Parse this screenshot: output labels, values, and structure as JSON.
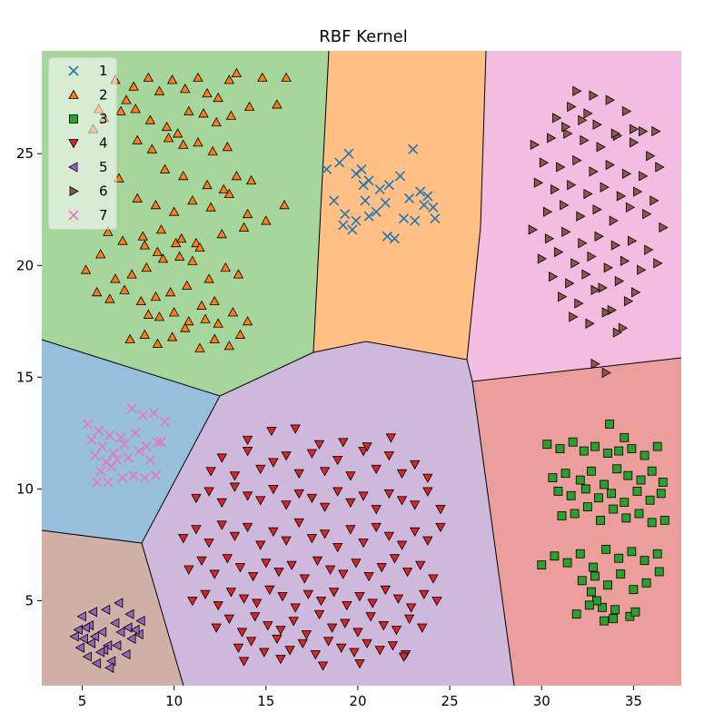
{
  "chart_data": {
    "type": "scatter",
    "title": "RBF Kernel",
    "xlabel": "",
    "ylabel": "",
    "xlim": [
      2.8,
      37.6
    ],
    "ylim": [
      1.2,
      29.6
    ],
    "xticks": [
      5,
      10,
      15,
      20,
      25,
      30,
      35
    ],
    "yticks": [
      5,
      10,
      15,
      20,
      25
    ],
    "grid": false,
    "legend_position": "top-left",
    "regions": [
      {
        "label": "1",
        "color": "#ffbf85"
      },
      {
        "label": "2",
        "color": "#a6d69b"
      },
      {
        "label": "3",
        "color": "#eb9e9b"
      },
      {
        "label": "4",
        "color": "#ceb8dc"
      },
      {
        "label": "5",
        "color": "#98c0dc"
      },
      {
        "label": "6",
        "color": "#d0b1a8"
      },
      {
        "label": "7",
        "color": "#f2bde0"
      }
    ],
    "series": [
      {
        "name": "1",
        "marker": "x",
        "color": "#1f77b4",
        "x": [
          18.3,
          19.0,
          19.5,
          19.9,
          20.3,
          20.6,
          21.2,
          21.7,
          22.3,
          23.0,
          23.8,
          24.1,
          18.7,
          19.3,
          19.9,
          20.6,
          21.0,
          21.6,
          22.0,
          22.5,
          23.1,
          23.6,
          24.2,
          19.2,
          19.7,
          20.4,
          21.5,
          22.8,
          23.4,
          20.2
        ],
        "y": [
          24.3,
          24.6,
          25.0,
          24.1,
          23.6,
          23.8,
          23.4,
          23.6,
          24.0,
          25.2,
          23.1,
          22.6,
          22.9,
          22.3,
          22.0,
          22.2,
          22.4,
          21.3,
          21.2,
          22.1,
          22.0,
          22.7,
          22.1,
          21.8,
          21.6,
          22.9,
          22.8,
          23.0,
          23.3,
          24.3
        ]
      },
      {
        "name": "2",
        "marker": "triangle-up",
        "color": "#ff7f0e",
        "x": [
          5.9,
          6.8,
          7.4,
          7.8,
          8.6,
          9.2,
          9.9,
          10.6,
          11.3,
          11.8,
          12.4,
          13.0,
          13.4,
          14.1,
          14.8,
          15.6,
          16.1,
          5.6,
          6.2,
          7.1,
          7.9,
          8.7,
          9.6,
          10.2,
          10.8,
          11.6,
          12.3,
          13.1,
          5.2,
          6.0,
          6.8,
          7.7,
          8.5,
          9.4,
          10.1,
          11.0,
          11.9,
          12.8,
          13.5,
          5.8,
          6.5,
          7.3,
          8.2,
          9.0,
          9.8,
          10.7,
          11.5,
          12.2,
          8.6,
          9.2,
          10.0,
          10.8,
          11.7,
          12.4,
          13.2,
          14.0,
          7.6,
          8.4,
          9.1,
          9.9,
          10.6,
          11.4,
          12.2,
          13.0,
          13.6,
          8.0,
          8.8,
          9.7,
          10.5,
          11.3,
          12.1,
          12.9,
          7.0,
          8.0,
          9.0,
          10.0,
          11.0,
          12.0,
          13.0,
          14.0,
          15.0,
          16.0,
          6.4,
          7.2,
          8.3,
          9.3,
          10.4,
          11.2,
          12.6,
          13.8,
          9.5,
          10.5,
          11.8,
          12.7,
          13.4,
          14.2,
          8.4,
          9.1,
          10.3,
          11.4
        ],
        "y": [
          27.0,
          28.3,
          27.4,
          28.0,
          28.4,
          27.8,
          28.3,
          27.9,
          28.4,
          27.7,
          27.5,
          28.3,
          28.6,
          27.1,
          28.4,
          27.2,
          28.4,
          26.1,
          26.6,
          26.9,
          27.0,
          26.5,
          26.2,
          25.9,
          26.9,
          26.8,
          26.4,
          26.7,
          19.8,
          20.5,
          19.4,
          19.6,
          19.9,
          20.3,
          21.0,
          20.2,
          19.4,
          19.9,
          19.6,
          18.8,
          18.5,
          18.9,
          18.4,
          18.6,
          18.8,
          19.1,
          18.2,
          18.4,
          17.8,
          17.7,
          17.9,
          17.5,
          17.6,
          17.4,
          17.9,
          17.5,
          16.7,
          16.9,
          16.5,
          16.8,
          17.2,
          16.3,
          16.7,
          16.4,
          16.9,
          25.6,
          25.2,
          25.7,
          25.4,
          25.5,
          25.1,
          25.3,
          23.9,
          23.0,
          22.7,
          22.4,
          22.9,
          22.6,
          23.2,
          22.3,
          22.0,
          22.7,
          21.5,
          21.1,
          21.3,
          21.6,
          21.2,
          21.0,
          21.4,
          21.7,
          24.3,
          24.0,
          23.6,
          23.4,
          24.0,
          23.8,
          20.9,
          20.6,
          20.4,
          20.8
        ]
      },
      {
        "name": "3",
        "marker": "square",
        "color": "#2ca02c",
        "x": [
          30.3,
          31.0,
          31.7,
          32.3,
          32.9,
          33.6,
          34.2,
          34.9,
          35.6,
          36.3,
          30.6,
          31.3,
          32.1,
          32.7,
          33.4,
          34.1,
          34.7,
          35.4,
          36.0,
          36.6,
          30.9,
          31.6,
          32.4,
          33.1,
          33.8,
          34.5,
          35.2,
          35.9,
          36.5,
          31.1,
          31.8,
          32.5,
          33.2,
          33.9,
          34.6,
          35.3,
          36.0,
          36.7,
          30.0,
          30.7,
          31.4,
          32.1,
          32.8,
          33.5,
          34.2,
          34.9,
          35.6,
          36.3,
          32.2,
          32.9,
          33.6,
          34.3,
          35.0,
          35.7,
          36.4,
          33.3,
          33.0,
          32.7,
          34.8,
          33.9,
          35.1,
          31.9,
          32.6,
          33.4,
          34.0,
          33.7,
          34.5
        ],
        "y": [
          12.0,
          11.8,
          12.1,
          11.7,
          11.9,
          11.6,
          11.7,
          11.8,
          11.5,
          11.9,
          10.5,
          10.7,
          10.4,
          10.8,
          10.2,
          10.9,
          10.6,
          10.4,
          10.8,
          10.3,
          9.9,
          9.7,
          10.0,
          9.6,
          9.8,
          9.4,
          9.9,
          9.5,
          9.8,
          8.8,
          8.9,
          9.2,
          8.6,
          9.1,
          8.7,
          8.9,
          8.5,
          8.6,
          6.6,
          7.0,
          6.7,
          7.1,
          6.5,
          7.3,
          6.9,
          7.2,
          6.8,
          7.1,
          5.9,
          6.1,
          5.7,
          6.2,
          5.5,
          5.8,
          6.3,
          4.7,
          5.0,
          5.4,
          4.3,
          4.2,
          4.5,
          4.4,
          4.8,
          4.1,
          4.6,
          12.9,
          12.3
        ]
      },
      {
        "name": "4",
        "marker": "triangle-down",
        "color": "#d62728",
        "x": [
          12.0,
          12.6,
          13.3,
          14.0,
          14.7,
          15.4,
          16.1,
          16.8,
          17.5,
          18.2,
          18.9,
          19.6,
          20.3,
          21.0,
          21.7,
          22.4,
          23.1,
          23.8,
          11.2,
          11.9,
          12.6,
          13.3,
          14.0,
          14.7,
          15.4,
          16.1,
          16.8,
          17.5,
          18.2,
          18.9,
          19.6,
          20.3,
          21.0,
          21.7,
          22.4,
          23.1,
          23.8,
          24.5,
          10.5,
          11.2,
          11.9,
          12.6,
          13.3,
          14.0,
          14.7,
          15.4,
          16.1,
          16.8,
          17.5,
          18.2,
          18.9,
          19.6,
          20.3,
          21.0,
          21.7,
          22.4,
          23.1,
          23.8,
          24.5,
          10.8,
          11.5,
          12.2,
          12.9,
          13.6,
          14.3,
          15.0,
          15.7,
          16.4,
          17.1,
          17.8,
          18.5,
          19.2,
          19.9,
          20.6,
          21.3,
          22.0,
          22.7,
          23.4,
          24.1,
          11.0,
          11.7,
          12.4,
          13.1,
          13.8,
          14.5,
          15.2,
          15.9,
          16.6,
          17.3,
          18.0,
          18.7,
          19.4,
          20.1,
          20.8,
          21.5,
          22.2,
          22.9,
          23.6,
          24.3,
          12.3,
          13.0,
          13.7,
          14.4,
          15.1,
          15.8,
          16.5,
          17.2,
          17.9,
          18.6,
          19.3,
          20.0,
          20.7,
          21.4,
          22.1,
          22.8,
          23.5,
          13.5,
          14.2,
          14.9,
          15.6,
          16.3,
          17.0,
          17.7,
          18.4,
          19.1,
          19.8,
          20.5,
          21.2,
          21.9,
          22.6,
          14.0,
          15.3,
          16.6,
          17.9,
          19.2,
          20.5,
          21.8,
          13.8,
          15.8,
          18.1,
          20.1,
          22.5
        ],
        "y": [
          10.8,
          11.4,
          10.6,
          11.7,
          10.9,
          11.2,
          11.5,
          10.7,
          11.6,
          10.8,
          11.3,
          10.6,
          11.7,
          10.9,
          11.5,
          10.7,
          11.1,
          10.5,
          9.6,
          9.9,
          9.4,
          10.1,
          9.7,
          9.5,
          10.0,
          9.3,
          9.8,
          9.6,
          9.2,
          9.9,
          9.4,
          9.7,
          9.1,
          9.8,
          9.5,
          9.3,
          9.9,
          9.1,
          7.8,
          8.2,
          7.6,
          8.4,
          7.9,
          8.3,
          7.5,
          8.1,
          7.7,
          8.5,
          7.8,
          8.0,
          7.4,
          8.2,
          7.6,
          8.3,
          7.9,
          7.5,
          8.1,
          7.7,
          8.3,
          6.4,
          6.8,
          6.2,
          6.9,
          6.5,
          6.1,
          6.7,
          6.3,
          6.6,
          6.0,
          6.8,
          6.4,
          6.2,
          6.7,
          6.1,
          6.5,
          6.9,
          6.3,
          6.6,
          6.0,
          5.0,
          5.3,
          4.8,
          5.4,
          5.1,
          4.9,
          5.5,
          5.2,
          4.7,
          5.3,
          5.0,
          5.4,
          4.8,
          5.2,
          4.9,
          5.5,
          5.1,
          4.7,
          5.3,
          5.0,
          3.8,
          4.2,
          3.6,
          4.3,
          3.9,
          3.7,
          4.1,
          3.5,
          4.4,
          3.8,
          4.0,
          3.6,
          4.3,
          3.9,
          3.7,
          4.2,
          3.8,
          2.9,
          3.2,
          2.7,
          3.3,
          2.8,
          3.1,
          2.6,
          3.2,
          2.9,
          2.7,
          3.1,
          2.8,
          3.0,
          2.6,
          12.2,
          12.6,
          12.7,
          12.0,
          12.1,
          11.9,
          12.3,
          2.3,
          2.4,
          2.1,
          2.2,
          2.5
        ]
      },
      {
        "name": "5",
        "marker": "triangle-left",
        "color": "#9467bd",
        "x": [
          5.0,
          5.6,
          6.3,
          7.0,
          7.6,
          8.2,
          4.8,
          5.4,
          6.1,
          6.8,
          7.5,
          8.1,
          5.1,
          5.7,
          6.4,
          7.1,
          7.7,
          4.9,
          5.5,
          6.2,
          6.9,
          7.4,
          5.3,
          6.0,
          6.6,
          5.8,
          6.5,
          4.6,
          7.9,
          5.2
        ],
        "y": [
          4.3,
          4.5,
          4.6,
          4.9,
          4.4,
          4.1,
          3.7,
          3.9,
          3.6,
          4.0,
          3.8,
          3.5,
          3.3,
          3.4,
          3.0,
          3.6,
          3.3,
          2.9,
          3.1,
          2.8,
          3.0,
          2.6,
          2.5,
          2.7,
          2.3,
          2.2,
          2.0,
          3.4,
          3.7,
          3.8
        ]
      },
      {
        "name": "6",
        "marker": "triangle-right",
        "color": "#8c564b",
        "x": [
          31.9,
          32.8,
          33.7,
          34.6,
          35.5,
          29.6,
          30.5,
          31.4,
          32.3,
          33.2,
          34.1,
          35.0,
          35.9,
          30.1,
          31.0,
          31.9,
          32.8,
          33.7,
          34.6,
          35.5,
          36.4,
          29.8,
          30.7,
          31.6,
          32.5,
          33.4,
          34.3,
          35.2,
          36.1,
          30.3,
          31.2,
          32.1,
          33.0,
          33.9,
          34.8,
          35.7,
          36.6,
          29.5,
          30.4,
          31.3,
          32.2,
          33.1,
          34.0,
          34.9,
          35.8,
          30.0,
          30.9,
          31.8,
          32.7,
          33.6,
          34.5,
          35.4,
          36.3,
          30.6,
          31.5,
          32.4,
          33.3,
          34.2,
          35.1,
          31.1,
          32.0,
          32.9,
          33.8,
          34.7,
          31.7,
          32.6,
          33.5,
          34.4,
          32.9,
          33.5,
          34.1,
          30.8,
          31.3,
          32.2,
          33.0,
          34.0,
          35.0,
          36.2,
          31.6,
          32.5
        ],
        "y": [
          27.8,
          27.6,
          27.4,
          26.9,
          26.0,
          25.4,
          25.7,
          25.9,
          25.6,
          25.3,
          25.8,
          25.5,
          24.9,
          24.6,
          24.4,
          24.7,
          24.2,
          24.5,
          24.1,
          24.0,
          24.4,
          23.7,
          23.4,
          23.6,
          23.2,
          23.5,
          23.1,
          23.3,
          22.9,
          22.4,
          22.7,
          22.2,
          22.5,
          22.0,
          22.6,
          22.3,
          21.7,
          21.6,
          21.2,
          21.5,
          21.0,
          21.3,
          20.9,
          21.1,
          20.7,
          20.3,
          20.6,
          20.1,
          20.4,
          19.9,
          20.2,
          19.8,
          20.1,
          19.5,
          19.2,
          19.6,
          19.0,
          19.3,
          18.8,
          18.6,
          18.3,
          18.9,
          18.0,
          18.4,
          17.7,
          17.4,
          17.9,
          17.2,
          15.6,
          15.2,
          17.0,
          26.6,
          26.2,
          26.5,
          26.3,
          25.9,
          26.1,
          26.0,
          27.1,
          26.8
        ]
      },
      {
        "name": "7",
        "marker": "x",
        "color": "#e377c2",
        "x": [
          5.3,
          5.9,
          6.5,
          7.1,
          7.7,
          8.3,
          8.9,
          9.5,
          5.5,
          6.1,
          6.7,
          7.3,
          7.9,
          8.5,
          9.1,
          5.7,
          6.3,
          6.9,
          7.5,
          8.1,
          8.7,
          9.3,
          6.0,
          6.6,
          7.2,
          7.8,
          8.4,
          9.0,
          5.8,
          6.4
        ],
        "y": [
          12.9,
          12.6,
          12.4,
          12.3,
          13.6,
          13.3,
          13.4,
          13.0,
          12.2,
          11.9,
          11.6,
          12.0,
          12.5,
          11.9,
          12.1,
          11.5,
          11.2,
          11.3,
          11.4,
          11.7,
          11.3,
          12.1,
          10.8,
          11.0,
          10.5,
          10.6,
          10.5,
          10.6,
          10.3,
          10.3
        ]
      }
    ]
  }
}
